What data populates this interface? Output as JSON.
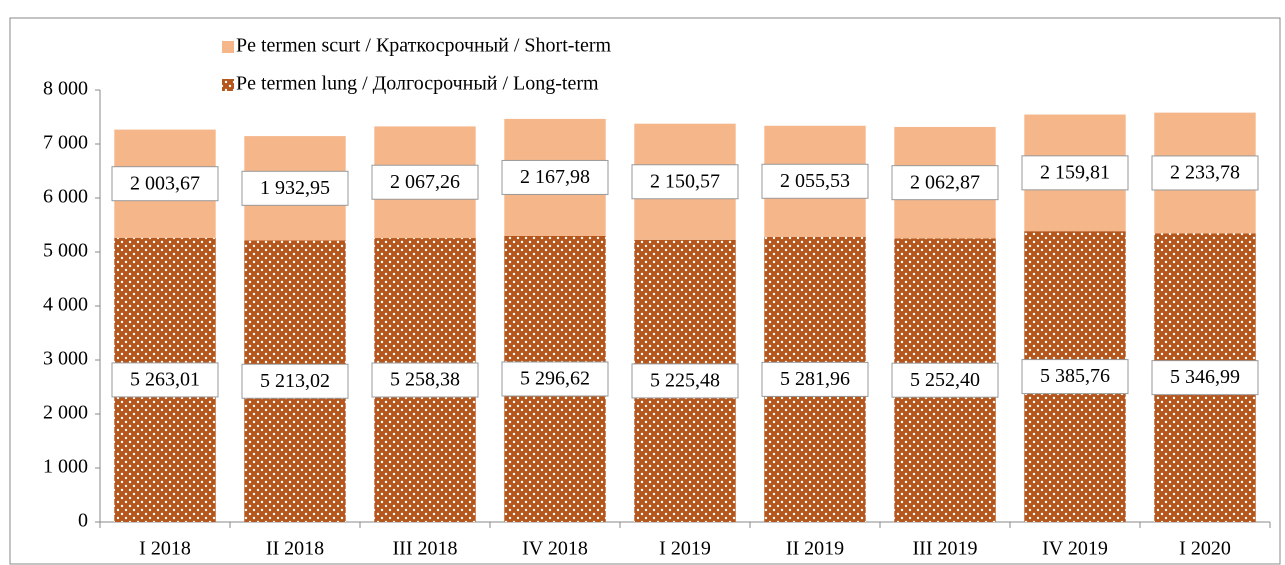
{
  "chart_data": {
    "type": "stacked-bar",
    "categories": [
      "I 2018",
      "II 2018",
      "III 2018",
      "IV 2018",
      "I 2019",
      "II 2019",
      "III 2019",
      "IV 2019",
      "I 2020"
    ],
    "series": [
      {
        "name": "Pe termen lung / Долгосрочный / Long-term",
        "color": "#b5561c",
        "pattern": "dots",
        "values": [
          5263.01,
          5213.02,
          5258.38,
          5296.62,
          5225.48,
          5281.96,
          5252.4,
          5385.76,
          5346.99
        ],
        "value_labels": [
          "5 263,01",
          "5 213,02",
          "5 258,38",
          "5 296,62",
          "5 225,48",
          "5 281,96",
          "5 252,40",
          "5 385,76",
          "5 346,99"
        ]
      },
      {
        "name": "Pe termen scurt / Краткосрочный / Short-term",
        "color": "#f5b68a",
        "values": [
          2003.67,
          1932.95,
          2067.26,
          2167.98,
          2150.57,
          2055.53,
          2062.87,
          2159.81,
          2233.78
        ],
        "value_labels": [
          "2 003,67",
          "1 932,95",
          "2 067,26",
          "2 167,98",
          "2 150,57",
          "2 055,53",
          "2 062,87",
          "2 159,81",
          "2 233,78"
        ]
      }
    ],
    "ylim": [
      0,
      8000
    ],
    "yticks": [
      0,
      {
        "value": 1000,
        "label": "1 000"
      },
      {
        "value": 2000,
        "label": "2 000"
      },
      {
        "value": 3000,
        "label": "3 000"
      },
      {
        "value": 4000,
        "label": "4 000"
      },
      {
        "value": 5000,
        "label": "5 000"
      },
      {
        "value": 6000,
        "label": "6 000"
      },
      {
        "value": 7000,
        "label": "7 000"
      },
      {
        "value": 8000,
        "label": "8 000"
      }
    ],
    "legend": "top-left",
    "grid": false
  }
}
